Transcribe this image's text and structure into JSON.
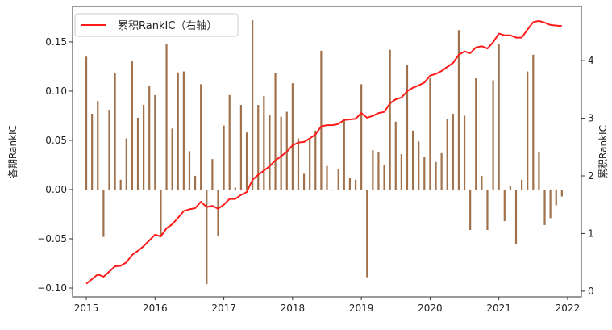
{
  "chart_data": {
    "type": "bar+line",
    "title": "",
    "xlabel": "",
    "ylabel_left": "各期RankIC",
    "ylabel_right": "累积RankIC",
    "x_start": "2015-01",
    "x_freq": "monthly",
    "xlim": [
      2014.8,
      2022.2
    ],
    "ylim_left": [
      -0.109,
      0.186
    ],
    "ylim_right": [
      -0.1,
      4.94
    ],
    "x_ticks": [
      "2015",
      "2016",
      "2017",
      "2018",
      "2019",
      "2020",
      "2021",
      "2022"
    ],
    "y_left_ticks": [
      "0.15",
      "0.10",
      "0.05",
      "0.00",
      "−0.05",
      "−0.10"
    ],
    "y_left_tick_values": [
      0.15,
      0.1,
      0.05,
      0.0,
      -0.05,
      -0.1
    ],
    "y_right_ticks": [
      "4",
      "3",
      "2",
      "1",
      "0"
    ],
    "y_right_tick_values": [
      4,
      3,
      2,
      1,
      0
    ],
    "grid": false,
    "legend": {
      "position": "top-left",
      "entries": [
        "累积RankIC（右轴）"
      ]
    },
    "colors": {
      "bar": "#a0714a",
      "line": "#ff1a1a"
    },
    "series": [
      {
        "name": "各期RankIC",
        "type": "bar",
        "axis": "left",
        "values": [
          0.135,
          0.077,
          0.09,
          -0.048,
          0.081,
          0.118,
          0.01,
          0.052,
          0.131,
          0.073,
          0.086,
          0.105,
          0.096,
          -0.048,
          0.148,
          0.062,
          0.119,
          0.12,
          0.039,
          0.014,
          0.107,
          -0.096,
          0.031,
          -0.047,
          0.065,
          0.096,
          0.002,
          0.086,
          0.058,
          0.172,
          0.086,
          0.095,
          0.076,
          0.118,
          0.074,
          0.079,
          0.108,
          0.052,
          0.016,
          0.052,
          0.06,
          0.141,
          0.024,
          -0.001,
          0.021,
          0.071,
          0.012,
          0.01,
          0.107,
          -0.089,
          0.04,
          0.038,
          0.025,
          0.142,
          0.069,
          0.036,
          0.127,
          0.06,
          0.049,
          0.033,
          0.113,
          0.028,
          0.037,
          0.072,
          0.077,
          0.162,
          0.075,
          -0.041,
          0.113,
          0.014,
          -0.041,
          0.111,
          0.148,
          -0.032,
          0.004,
          -0.055,
          0.01,
          0.12,
          0.137,
          0.038,
          -0.036,
          -0.029,
          -0.016,
          -0.007
        ]
      },
      {
        "name": "累积RankIC（右轴）",
        "type": "line",
        "axis": "right",
        "values": [
          0.13,
          0.21,
          0.29,
          0.25,
          0.34,
          0.43,
          0.44,
          0.5,
          0.63,
          0.7,
          0.78,
          0.88,
          0.98,
          0.95,
          1.09,
          1.16,
          1.27,
          1.39,
          1.42,
          1.44,
          1.55,
          1.46,
          1.48,
          1.43,
          1.5,
          1.6,
          1.6,
          1.67,
          1.72,
          1.93,
          2.02,
          2.09,
          2.17,
          2.27,
          2.34,
          2.42,
          2.53,
          2.58,
          2.59,
          2.65,
          2.72,
          2.86,
          2.88,
          2.88,
          2.9,
          2.97,
          2.98,
          2.99,
          3.09,
          3.01,
          3.04,
          3.09,
          3.11,
          3.26,
          3.33,
          3.36,
          3.47,
          3.53,
          3.57,
          3.62,
          3.74,
          3.77,
          3.82,
          3.89,
          3.96,
          4.1,
          4.16,
          4.13,
          4.23,
          4.25,
          4.21,
          4.32,
          4.47,
          4.44,
          4.44,
          4.4,
          4.4,
          4.54,
          4.67,
          4.69,
          4.66,
          4.62,
          4.61,
          4.6
        ]
      }
    ]
  }
}
